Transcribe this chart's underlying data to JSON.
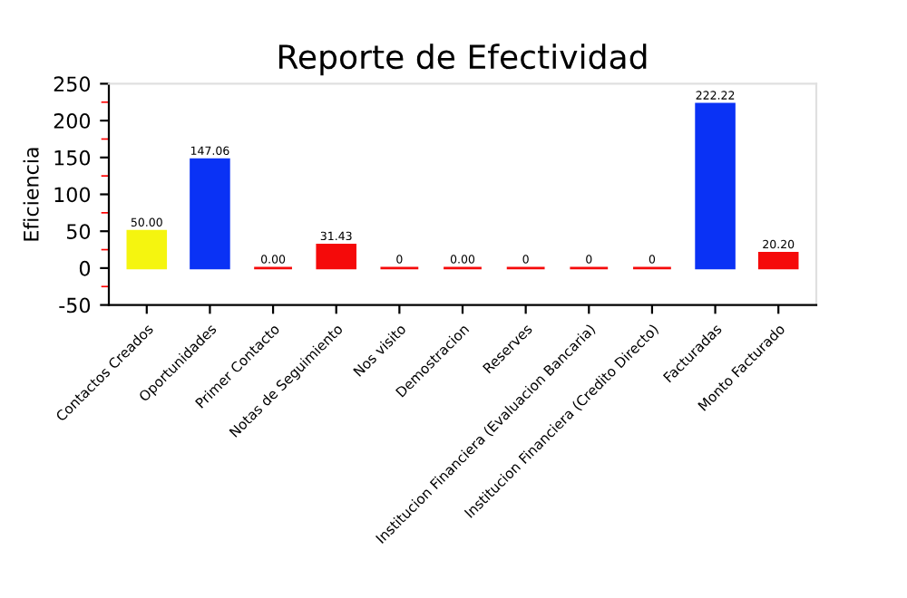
{
  "chart_data": {
    "type": "bar",
    "title": "Reporte de Efectividad",
    "ylabel": "Eficiencia",
    "categories": [
      "Contactos Creados",
      "Oportunidades",
      "Primer Contacto",
      "Notas de Seguimiento",
      "Nos visito",
      "Demostracion",
      "Reserves",
      "Institucion Financiera (Evaluacion Bancaria)",
      "Institucion Financiera (Credito Directo)",
      "Facturadas",
      "Monto Facturado"
    ],
    "values": [
      50,
      147.06,
      0,
      31.43,
      0,
      0,
      0,
      0,
      0,
      222.22,
      20.2
    ],
    "value_labels": [
      "50.00",
      "147.06",
      "0.00",
      "31.43",
      "0",
      "0.00",
      "0",
      "0",
      "0",
      "222.22",
      "20.20"
    ],
    "colors": [
      "#f5f50f",
      "#0a32f5",
      "#f50a0a",
      "#f50a0a",
      "#f50a0a",
      "#f50a0a",
      "#f50a0a",
      "#f50a0a",
      "#f50a0a",
      "#0a32f5",
      "#f50a0a"
    ],
    "ylim": [
      -50,
      250
    ],
    "yticks": [
      -50,
      0,
      50,
      100,
      150,
      200,
      250
    ],
    "grid": false
  }
}
